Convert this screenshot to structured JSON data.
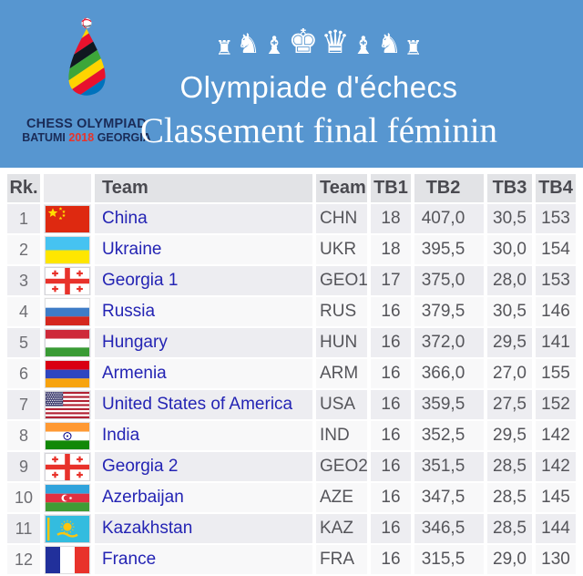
{
  "colors": {
    "banner_bg": "#5796D0",
    "banner_text": "#FFFFFF",
    "link": "#2424B4",
    "header_bg": "#E2E3E6",
    "row_odd": "#EDEDF1",
    "row_even": "#F8F8F9",
    "logo_navy": "#1A2B57",
    "logo_red": "#E8332A"
  },
  "banner": {
    "title": "Olympiade d'échecs",
    "subtitle": "Classement final féminin",
    "pieces": [
      {
        "piece": "rook",
        "size": 22
      },
      {
        "piece": "knight",
        "size": 30
      },
      {
        "piece": "bishop",
        "size": 27
      },
      {
        "piece": "king",
        "size": 37
      },
      {
        "piece": "queen",
        "size": 35
      },
      {
        "piece": "bishop",
        "size": 27
      },
      {
        "piece": "knight",
        "size": 30
      },
      {
        "piece": "rook",
        "size": 22
      }
    ],
    "logo": {
      "line1": "CHESS OLYMPIAD",
      "city": "BATUMI",
      "year": "2018",
      "country": "GEORGIA"
    }
  },
  "table": {
    "headers": [
      "Rk.",
      "",
      "Team",
      "Team",
      "TB1",
      "TB2",
      "TB3",
      "TB4"
    ],
    "rows": [
      {
        "rank": "1",
        "flag": "china",
        "team": "China",
        "code": "CHN",
        "tb1": "18",
        "tb2": "407,0",
        "tb3": "30,5",
        "tb4": "153"
      },
      {
        "rank": "2",
        "flag": "ukraine",
        "team": "Ukraine",
        "code": "UKR",
        "tb1": "18",
        "tb2": "395,5",
        "tb3": "30,0",
        "tb4": "154"
      },
      {
        "rank": "3",
        "flag": "georgia",
        "team": "Georgia 1",
        "code": "GEO1",
        "tb1": "17",
        "tb2": "375,0",
        "tb3": "28,0",
        "tb4": "153"
      },
      {
        "rank": "4",
        "flag": "russia",
        "team": "Russia",
        "code": "RUS",
        "tb1": "16",
        "tb2": "379,5",
        "tb3": "30,5",
        "tb4": "146"
      },
      {
        "rank": "5",
        "flag": "hungary",
        "team": "Hungary",
        "code": "HUN",
        "tb1": "16",
        "tb2": "372,0",
        "tb3": "29,5",
        "tb4": "141"
      },
      {
        "rank": "6",
        "flag": "armenia",
        "team": "Armenia",
        "code": "ARM",
        "tb1": "16",
        "tb2": "366,0",
        "tb3": "27,0",
        "tb4": "155"
      },
      {
        "rank": "7",
        "flag": "usa",
        "team": "United States of America",
        "code": "USA",
        "tb1": "16",
        "tb2": "359,5",
        "tb3": "27,5",
        "tb4": "152"
      },
      {
        "rank": "8",
        "flag": "india",
        "team": "India",
        "code": "IND",
        "tb1": "16",
        "tb2": "352,5",
        "tb3": "29,5",
        "tb4": "142"
      },
      {
        "rank": "9",
        "flag": "georgia",
        "team": "Georgia 2",
        "code": "GEO2",
        "tb1": "16",
        "tb2": "351,5",
        "tb3": "28,5",
        "tb4": "142"
      },
      {
        "rank": "10",
        "flag": "azerbaijan",
        "team": "Azerbaijan",
        "code": "AZE",
        "tb1": "16",
        "tb2": "347,5",
        "tb3": "28,5",
        "tb4": "145"
      },
      {
        "rank": "11",
        "flag": "kazakhstan",
        "team": "Kazakhstan",
        "code": "KAZ",
        "tb1": "16",
        "tb2": "346,5",
        "tb3": "28,5",
        "tb4": "144"
      },
      {
        "rank": "12",
        "flag": "france",
        "team": "France",
        "code": "FRA",
        "tb1": "16",
        "tb2": "315,5",
        "tb3": "29,0",
        "tb4": "130"
      }
    ]
  }
}
